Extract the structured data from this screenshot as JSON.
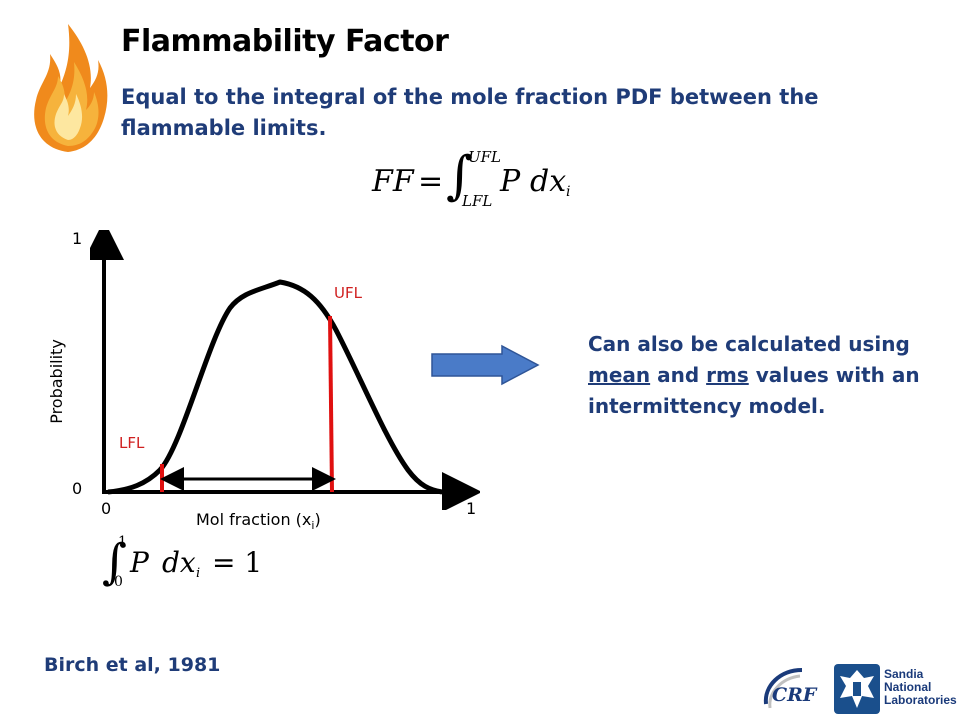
{
  "slide": {
    "title": "Flammability Factor",
    "subtitle": "Equal to the integral of the mole fraction PDF between the flammable limits.",
    "formula_ff": {
      "lhs": "FF",
      "eq": "=",
      "upper": "UFL",
      "lower": "LFL",
      "integrand": "P",
      "d": "dx",
      "sub": "i"
    },
    "formula_norm": {
      "upper": "1",
      "lower": "0",
      "integrand": "P",
      "d": "dx",
      "sub": "i",
      "eq": "= 1"
    },
    "graph": {
      "y_top": "1",
      "y_bottom": "0",
      "x_left": "0",
      "x_right": "1",
      "ylabel": "Probability",
      "xlabel_main": "Mol fraction (x",
      "xlabel_sub": "i",
      "xlabel_end": ")",
      "lfl": "LFL",
      "ufl": "UFL"
    },
    "side_note": {
      "part1": "Can also be calculated using ",
      "mean": "mean",
      "part2": " and ",
      "rms": "rms",
      "part3": " values with an intermittency model."
    },
    "citation": "Birch et al, 1981",
    "logos": {
      "crf": "CRF",
      "sandia_line1": "Sandia",
      "sandia_line2": "National",
      "sandia_line3": "Laboratories"
    },
    "colors": {
      "heading_blue": "#1f3c78",
      "flame_orange": "#f08a1c",
      "red_marker": "#e01010",
      "arrow_blue": "#4a7bc8"
    }
  }
}
